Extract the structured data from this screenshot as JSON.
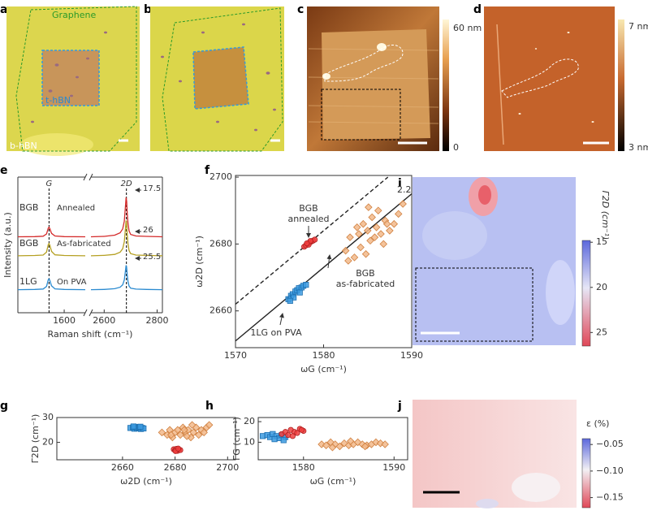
{
  "images": {
    "a": {
      "panel": "a",
      "labels": [
        "Graphene",
        "t-hBN",
        "b-hBN"
      ]
    },
    "b": {
      "panel": "b"
    },
    "c": {
      "panel": "c",
      "colorbar": [
        "60 nm",
        "0"
      ]
    },
    "d": {
      "panel": "d",
      "colorbar": [
        "7 nm",
        "3 nm"
      ]
    },
    "i": {
      "panel": "i",
      "colorbar_label": "Γ2D (cm⁻¹)",
      "lim": [
        14.8,
        26.5
      ],
      "ticks": [
        15,
        20,
        25
      ]
    },
    "j": {
      "panel": "j",
      "colorbar_label": "ε (%)",
      "lim": [
        -0.039,
        -0.169
      ],
      "ticks": [
        {
          "value": -0.05,
          "label": "−0.05"
        },
        {
          "value": -0.1,
          "label": "−0.10"
        },
        {
          "value": -0.15,
          "label": "−0.15"
        }
      ]
    }
  },
  "chart_data": [
    {
      "type": "spectra",
      "panel": "e",
      "x_label": "Raman shift (cm⁻¹)",
      "y_label": "Intensity (a.u.)",
      "xlim": [
        1545,
        2820
      ],
      "axis_break": [
        1625,
        2550
      ],
      "ylim": [
        0,
        10
      ],
      "xticks": [
        1600,
        2600,
        2800
      ],
      "peaks": [
        {
          "label": "G",
          "x": 1582
        },
        {
          "label": "2D",
          "x": 2684
        }
      ],
      "x": [
        1545,
        1565,
        1575,
        1579,
        1581,
        1582,
        1583,
        1585,
        1589,
        1600,
        1625,
        2550,
        2600,
        2640,
        2660,
        2670,
        2676,
        2680,
        2683,
        2685,
        2687,
        2690,
        2694,
        2700,
        2720,
        2760,
        2820
      ],
      "series": [
        {
          "sample": "BGB",
          "name": "Annealed",
          "color": "#d42a2a",
          "fwhm": 17.5,
          "values": [
            5.6,
            5.61,
            5.64,
            5.81,
            6.23,
            6.3,
            6.2,
            5.85,
            5.66,
            5.61,
            5.6,
            5.6,
            5.63,
            5.72,
            5.89,
            6.18,
            6.76,
            7.78,
            8.5,
            8.21,
            7.34,
            6.62,
            6.04,
            5.77,
            5.66,
            5.63,
            5.6
          ]
        },
        {
          "sample": "BGB",
          "name": "As-fabricated",
          "color": "#b5a022",
          "fwhm": 26,
          "values": [
            4.2,
            4.22,
            4.25,
            4.47,
            5.01,
            5.1,
            4.97,
            4.52,
            4.27,
            4.22,
            4.2,
            4.2,
            4.23,
            4.3,
            4.46,
            4.72,
            5.24,
            6.15,
            6.8,
            6.54,
            5.76,
            5.11,
            4.59,
            4.36,
            4.25,
            4.23,
            4.2
          ]
        },
        {
          "sample": "1LG",
          "name": "On PVA",
          "color": "#2a8ad0",
          "fwhm": 25.5,
          "values": [
            1.7,
            1.72,
            1.75,
            1.94,
            2.42,
            2.5,
            2.38,
            1.98,
            1.76,
            1.72,
            1.7,
            1.7,
            1.72,
            1.77,
            1.88,
            2.06,
            2.42,
            3.05,
            3.5,
            3.32,
            2.78,
            2.33,
            1.97,
            1.81,
            1.74,
            1.72,
            1.7
          ]
        }
      ]
    },
    {
      "type": "scatter",
      "panel": "f",
      "x_label": "ωG (cm⁻¹)",
      "y_label": "ω2D (cm⁻¹)",
      "xlim": [
        1570,
        1590
      ],
      "ylim": [
        2649,
        2700.5
      ],
      "xticks": [
        1570,
        1580,
        1590
      ],
      "yticks": [
        2660,
        2680,
        2700
      ],
      "annotation": "2.2",
      "lines": [
        {
          "x": [
            1570,
            1590
          ],
          "values": [
            2651,
            2695
          ],
          "dashed": false
        },
        {
          "x": [
            1570,
            1587.3
          ],
          "values": [
            2662,
            2700
          ],
          "dashed": true
        }
      ],
      "series": [
        {
          "name": "1LG on PVA",
          "color": "#3d9be0",
          "edge": "#1c6fb0",
          "marker": "square",
          "x": [
            1576.0,
            1576.3,
            1576.5,
            1576.8,
            1577.0,
            1577.2,
            1577.5,
            1577.7,
            1578.0,
            1576.6,
            1577.3,
            1576.2
          ],
          "values": [
            2663.5,
            2664.5,
            2665.0,
            2665.8,
            2666.2,
            2666.8,
            2667.0,
            2667.5,
            2667.8,
            2664.0,
            2665.5,
            2663.0
          ]
        },
        {
          "name": "BGB annealed",
          "color": "#f04040",
          "edge": "#b02020",
          "marker": "circle",
          "x": [
            1577.8,
            1578.0,
            1578.2,
            1578.4,
            1578.6,
            1578.8,
            1579.0,
            1578.3,
            1578.5,
            1578.1
          ],
          "values": [
            2679.2,
            2679.6,
            2680.0,
            2680.4,
            2680.7,
            2681.0,
            2681.3,
            2679.8,
            2680.9,
            2680.2
          ]
        },
        {
          "name": "BGB as-fabricated",
          "color": "#f2b98a",
          "edge": "#d08040",
          "marker": "diamond",
          "x": [
            1582.5,
            1583.0,
            1583.5,
            1584.0,
            1584.2,
            1584.5,
            1585.0,
            1585.3,
            1585.5,
            1586.0,
            1586.2,
            1586.5,
            1587.0,
            1587.5,
            1588.0,
            1588.5,
            1589.0,
            1583.8,
            1584.8,
            1585.8,
            1586.8,
            1587.2,
            1582.8,
            1585.1
          ],
          "values": [
            2678,
            2682,
            2676,
            2683,
            2679,
            2686,
            2684,
            2681,
            2688,
            2685,
            2690,
            2683,
            2687,
            2684,
            2686,
            2689,
            2692,
            2685,
            2677,
            2682,
            2680,
            2686,
            2675,
            2691
          ]
        }
      ]
    },
    {
      "type": "scatter",
      "panel": "g",
      "x_label": "ω2D (cm⁻¹)",
      "y_label": "Γ2D (cm⁻¹)",
      "xlim": [
        2635,
        2703
      ],
      "ylim": [
        13,
        30
      ],
      "xticks": [
        2660,
        2680,
        2700
      ],
      "yticks": [
        20,
        30
      ],
      "series": [
        {
          "color": "#3d9be0",
          "edge": "#1c6fb0",
          "marker": "square",
          "x": [
            2663,
            2664,
            2664.5,
            2665,
            2665.5,
            2666,
            2666.5,
            2667,
            2667.5,
            2668,
            2664.2,
            2666.8
          ],
          "values": [
            25.8,
            26,
            25.5,
            26.2,
            25.6,
            25.9,
            26.1,
            25.4,
            25.8,
            25.6,
            26.4,
            26.3
          ]
        },
        {
          "color": "#f04040",
          "edge": "#b02020",
          "marker": "circle",
          "x": [
            2679.5,
            2680,
            2680.5,
            2681,
            2681.5,
            2682,
            2680.2,
            2681.2
          ],
          "values": [
            17.2,
            16.8,
            17.4,
            16.6,
            17.1,
            16.9,
            16.5,
            17.5
          ]
        },
        {
          "color": "#f2b98a",
          "edge": "#d08040",
          "marker": "diamond",
          "x": [
            2675,
            2677,
            2678,
            2679,
            2680,
            2681,
            2682,
            2683,
            2684,
            2685,
            2686,
            2687,
            2688,
            2689,
            2690,
            2691,
            2692,
            2693,
            2678.5,
            2683.5,
            2686.5,
            2684.5
          ],
          "values": [
            24,
            23,
            25,
            22,
            24,
            25,
            23,
            26,
            24,
            25,
            22,
            24,
            26,
            23,
            25,
            24,
            26,
            27,
            23,
            25,
            27,
            22.5
          ]
        }
      ]
    },
    {
      "type": "scatter",
      "panel": "h",
      "x_label": "ωG (cm⁻¹)",
      "y_label": "ΓG (cm⁻¹)",
      "xlim": [
        1575,
        1591.5
      ],
      "ylim": [
        1.5,
        22
      ],
      "xticks": [
        1580,
        1590
      ],
      "yticks": [
        10,
        20
      ],
      "series": [
        {
          "color": "#3d9be0",
          "edge": "#1c6fb0",
          "marker": "square",
          "x": [
            1575.5,
            1576,
            1576.3,
            1576.6,
            1577,
            1577.3,
            1577.6,
            1578,
            1576.8,
            1577.8
          ],
          "values": [
            13,
            13.5,
            12.5,
            14,
            13,
            12,
            13.5,
            12.5,
            11.5,
            11
          ]
        },
        {
          "color": "#f04040",
          "edge": "#b02020",
          "marker": "circle",
          "x": [
            1577.6,
            1578,
            1578.3,
            1578.6,
            1579,
            1579.3,
            1579.6,
            1580,
            1578.8,
            1579.8
          ],
          "values": [
            14,
            15,
            13.5,
            16,
            15,
            14.5,
            16.5,
            15.5,
            13,
            16
          ]
        },
        {
          "color": "#f2b98a",
          "edge": "#d08040",
          "marker": "diamond",
          "x": [
            1582,
            1582.5,
            1583,
            1583.5,
            1584,
            1584.5,
            1585,
            1585.5,
            1586,
            1586.5,
            1587,
            1587.5,
            1588,
            1588.5,
            1589,
            1583.2,
            1585.2,
            1586.8
          ],
          "values": [
            9,
            8.5,
            10,
            9,
            8,
            9.5,
            8.5,
            9,
            10,
            9,
            8.5,
            9,
            10,
            9.5,
            9,
            7.5,
            10.5,
            8
          ]
        }
      ]
    }
  ]
}
